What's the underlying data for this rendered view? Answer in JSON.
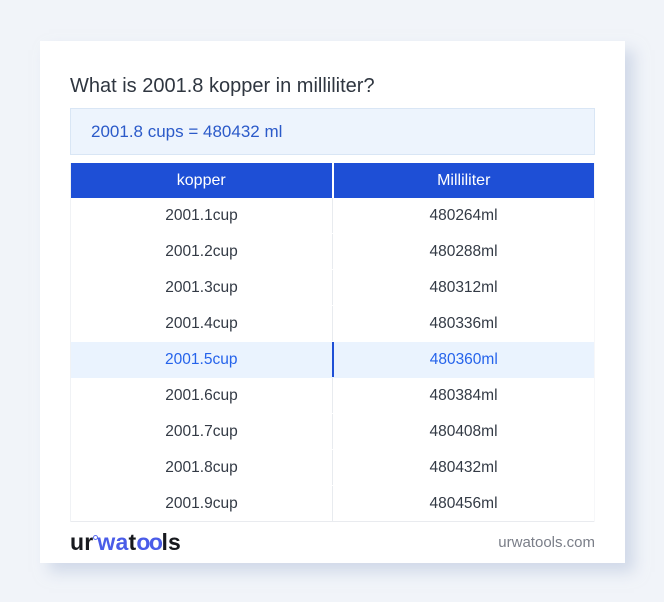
{
  "page": {
    "title": "What is 2001.8 kopper in milliliter?",
    "result_text": "2001.8 cups = 480432 ml"
  },
  "table": {
    "headers": [
      "kopper",
      "Milliliter"
    ],
    "rows": [
      {
        "kopper": "2001.1cup",
        "milliliter": "480264ml",
        "highlighted": false
      },
      {
        "kopper": "2001.2cup",
        "milliliter": "480288ml",
        "highlighted": false
      },
      {
        "kopper": "2001.3cup",
        "milliliter": "480312ml",
        "highlighted": false
      },
      {
        "kopper": "2001.4cup",
        "milliliter": "480336ml",
        "highlighted": false
      },
      {
        "kopper": "2001.5cup",
        "milliliter": "480360ml",
        "highlighted": true
      },
      {
        "kopper": "2001.6cup",
        "milliliter": "480384ml",
        "highlighted": false
      },
      {
        "kopper": "2001.7cup",
        "milliliter": "480408ml",
        "highlighted": false
      },
      {
        "kopper": "2001.8cup",
        "milliliter": "480432ml",
        "highlighted": false
      },
      {
        "kopper": "2001.9cup",
        "milliliter": "480456ml",
        "highlighted": false
      }
    ]
  },
  "footer": {
    "logo_parts": {
      "p1": "ur",
      "p2": "wa",
      "p3": "t",
      "p4": "oo",
      "p5": "ls"
    },
    "site_url": "urwatools.com"
  },
  "colors": {
    "page_background": "#f1f4f9",
    "header_blue": "#1e4fd6",
    "result_box_background": "#edf4fd",
    "result_text_blue": "#2b5ac9",
    "highlight_row_background": "#eaf3fe",
    "highlight_text_blue": "#2563eb",
    "logo_accent_blue": "#4a5ce8"
  }
}
